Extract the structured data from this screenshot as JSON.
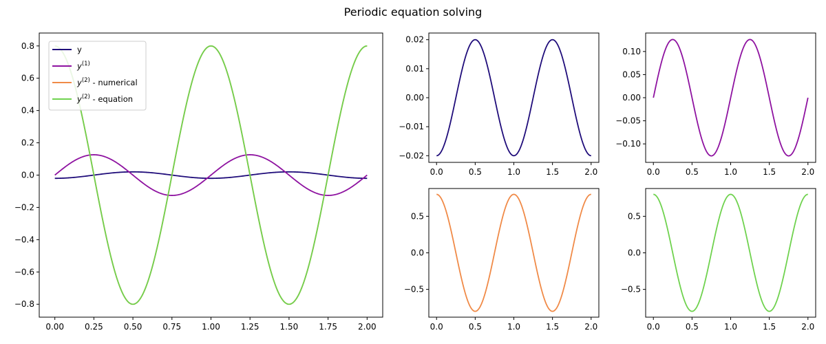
{
  "figure": {
    "title": "Periodic equation solving"
  },
  "chart_data": [
    {
      "id": "main",
      "type": "line",
      "xlim": [
        -0.1,
        2.1
      ],
      "ylim": [
        -0.88,
        0.88
      ],
      "xticks": [
        0.0,
        0.25,
        0.5,
        0.75,
        1.0,
        1.25,
        1.5,
        1.75,
        2.0
      ],
      "xtick_labels": [
        "0.00",
        "0.25",
        "0.50",
        "0.75",
        "1.00",
        "1.25",
        "1.50",
        "1.75",
        "2.00"
      ],
      "yticks": [
        -0.8,
        -0.6,
        -0.4,
        -0.2,
        0.0,
        0.2,
        0.4,
        0.6,
        0.8
      ],
      "ytick_labels": [
        "−0.8",
        "−0.6",
        "−0.4",
        "−0.2",
        "0.0",
        "0.2",
        "0.4",
        "0.6",
        "0.8"
      ],
      "legend": {
        "placement": "upper-left",
        "entries": [
          {
            "label": "y",
            "sup": "",
            "suffix": "",
            "color": "#1f0c7a"
          },
          {
            "label": "y",
            "sup": "(1)",
            "suffix": "",
            "color": "#8e12a0"
          },
          {
            "label": "y",
            "sup": "(2)",
            "suffix": " - numerical",
            "color": "#f08a47"
          },
          {
            "label": "y",
            "sup": "(2)",
            "suffix": " - equation",
            "color": "#6fd24e"
          }
        ]
      },
      "series": [
        {
          "name": "y",
          "color": "#1f0c7a",
          "function": "-0.02*cos(2*pi*x)",
          "x_range": [
            0,
            2
          ]
        },
        {
          "name": "y^(1)",
          "color": "#8e12a0",
          "function": "0.126*sin(2*pi*x)",
          "x_range": [
            0,
            2
          ]
        },
        {
          "name": "y^(2) - numerical",
          "color": "#f08a47",
          "function": "0.8*cos(2*pi*x)",
          "x_range": [
            0,
            2
          ]
        },
        {
          "name": "y^(2) - equation",
          "color": "#6fd24e",
          "function": "0.8*cos(2*pi*x)",
          "x_range": [
            0,
            2
          ]
        }
      ]
    },
    {
      "id": "y",
      "type": "line",
      "xlim": [
        -0.1,
        2.1
      ],
      "ylim": [
        -0.0223,
        0.0223
      ],
      "xticks": [
        0.0,
        0.5,
        1.0,
        1.5,
        2.0
      ],
      "xtick_labels": [
        "0.0",
        "0.5",
        "1.0",
        "1.5",
        "2.0"
      ],
      "yticks": [
        -0.02,
        -0.01,
        0.0,
        0.01,
        0.02
      ],
      "ytick_labels": [
        "−0.02",
        "−0.01",
        "0.00",
        "0.01",
        "0.02"
      ],
      "series": [
        {
          "color": "#1f0c7a",
          "function": "-0.02*cos(2*pi*x)",
          "x_range": [
            0,
            2
          ]
        }
      ]
    },
    {
      "id": "y1",
      "type": "line",
      "xlim": [
        -0.1,
        2.1
      ],
      "ylim": [
        -0.14,
        0.14
      ],
      "xticks": [
        0.0,
        0.5,
        1.0,
        1.5,
        2.0
      ],
      "xtick_labels": [
        "0.0",
        "0.5",
        "1.0",
        "1.5",
        "2.0"
      ],
      "yticks": [
        -0.1,
        -0.05,
        0.0,
        0.05,
        0.1
      ],
      "ytick_labels": [
        "−0.10",
        "−0.05",
        "0.00",
        "0.05",
        "0.10"
      ],
      "series": [
        {
          "color": "#8e12a0",
          "function": "0.126*sin(2*pi*x)",
          "x_range": [
            0,
            2
          ]
        }
      ]
    },
    {
      "id": "y2num",
      "type": "line",
      "xlim": [
        -0.1,
        2.1
      ],
      "ylim": [
        -0.88,
        0.88
      ],
      "xticks": [
        0.0,
        0.5,
        1.0,
        1.5,
        2.0
      ],
      "xtick_labels": [
        "0.0",
        "0.5",
        "1.0",
        "1.5",
        "2.0"
      ],
      "yticks": [
        -0.5,
        0.0,
        0.5
      ],
      "ytick_labels": [
        "−0.5",
        "0.0",
        "0.5"
      ],
      "series": [
        {
          "color": "#f08a47",
          "function": "0.8*cos(2*pi*x)",
          "x_range": [
            0,
            2
          ]
        }
      ]
    },
    {
      "id": "y2eq",
      "type": "line",
      "xlim": [
        -0.1,
        2.1
      ],
      "ylim": [
        -0.88,
        0.88
      ],
      "xticks": [
        0.0,
        0.5,
        1.0,
        1.5,
        2.0
      ],
      "xtick_labels": [
        "0.0",
        "0.5",
        "1.0",
        "1.5",
        "2.0"
      ],
      "yticks": [
        -0.5,
        0.0,
        0.5
      ],
      "ytick_labels": [
        "−0.5",
        "0.0",
        "0.5"
      ],
      "series": [
        {
          "color": "#6fd24e",
          "function": "0.8*cos(2*pi*x)",
          "x_range": [
            0,
            2
          ]
        }
      ]
    }
  ]
}
